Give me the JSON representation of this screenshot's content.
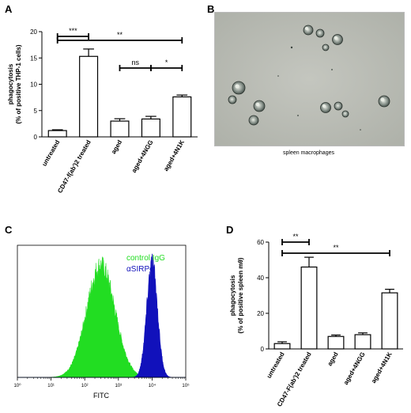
{
  "panels": {
    "a": {
      "letter": "A"
    },
    "b": {
      "letter": "B",
      "caption": "spleen macrophages"
    },
    "c": {
      "letter": "C",
      "xlabel": "FITC",
      "legend": [
        "control IgG",
        "αSIRPα"
      ],
      "legend_colors": [
        "#22dd22",
        "#1111bb"
      ],
      "xticks": [
        "10⁰",
        "10¹",
        "10²",
        "10³",
        "10⁴",
        "10⁵"
      ]
    },
    "d": {
      "letter": "D"
    }
  },
  "chart_data": [
    {
      "panel": "A",
      "type": "bar",
      "categories": [
        "untreated",
        "CD47-f(ab')2 treated",
        "aged",
        "aged+4NGG",
        "aged+4N1K"
      ],
      "values": [
        1.2,
        15.3,
        3.0,
        3.4,
        7.6
      ],
      "errors": [
        0.15,
        1.4,
        0.45,
        0.5,
        0.35
      ],
      "ylabel": "phagocytosis\n(% of positive THP-1 cells)",
      "ylim": [
        0,
        20
      ],
      "yticks": [
        0,
        5,
        10,
        15,
        20
      ],
      "significance": [
        {
          "from": 0,
          "to": 1,
          "label": "***"
        },
        {
          "from": 0,
          "to": 4,
          "label": "**"
        },
        {
          "from": 2,
          "to": 3,
          "label": "ns"
        },
        {
          "from": 3,
          "to": 4,
          "label": "*"
        }
      ]
    },
    {
      "panel": "C",
      "type": "area",
      "x_scale": "log",
      "xlim": [
        1,
        100000
      ],
      "series": [
        {
          "name": "control IgG",
          "peak_at": 300
        },
        {
          "name": "αSIRPα",
          "peak_at": 10000
        }
      ]
    },
    {
      "panel": "D",
      "type": "bar",
      "categories": [
        "untreated",
        "CD47-F(ab')2 treated",
        "aged",
        "aged+4NGG",
        "aged+4N1K"
      ],
      "values": [
        3,
        46,
        7,
        8,
        31.5
      ],
      "errors": [
        1.0,
        5.5,
        0.8,
        1.0,
        2.0
      ],
      "ylabel": "phagocytosis\n(% of positive spleen mθ)",
      "ylim": [
        0,
        60
      ],
      "yticks": [
        0,
        20,
        40,
        60
      ],
      "significance": [
        {
          "from": 0,
          "to": 1,
          "label": "**"
        },
        {
          "from": 0,
          "to": 4,
          "label": "**"
        }
      ]
    }
  ]
}
